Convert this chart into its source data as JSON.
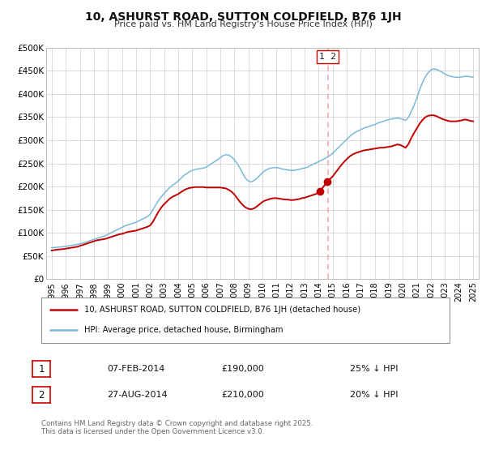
{
  "title": "10, ASHURST ROAD, SUTTON COLDFIELD, B76 1JH",
  "subtitle": "Price paid vs. HM Land Registry's House Price Index (HPI)",
  "ylim": [
    0,
    500000
  ],
  "yticks": [
    0,
    50000,
    100000,
    150000,
    200000,
    250000,
    300000,
    350000,
    400000,
    450000,
    500000
  ],
  "ytick_labels": [
    "£0",
    "£50K",
    "£100K",
    "£150K",
    "£200K",
    "£250K",
    "£300K",
    "£350K",
    "£400K",
    "£450K",
    "£500K"
  ],
  "xlim_left": 1994.6,
  "xlim_right": 2025.4,
  "xticks": [
    1995,
    1996,
    1997,
    1998,
    1999,
    2000,
    2001,
    2002,
    2003,
    2004,
    2005,
    2006,
    2007,
    2008,
    2009,
    2010,
    2011,
    2012,
    2013,
    2014,
    2015,
    2016,
    2017,
    2018,
    2019,
    2020,
    2021,
    2022,
    2023,
    2024,
    2025
  ],
  "hpi_color": "#7ab8d9",
  "price_color": "#c00000",
  "vline_x": 2014.65,
  "vline_color": "#f4aaaa",
  "ann_label": "1 2",
  "ann_x": 2014.65,
  "ann_y": 480000,
  "transaction1_date": "07-FEB-2014",
  "transaction1_price": "£190,000",
  "transaction1_note": "25% ↓ HPI",
  "transaction2_date": "27-AUG-2014",
  "transaction2_price": "£210,000",
  "transaction2_note": "20% ↓ HPI",
  "legend_label_price": "10, ASHURST ROAD, SUTTON COLDFIELD, B76 1JH (detached house)",
  "legend_label_hpi": "HPI: Average price, detached house, Birmingham",
  "footer": "Contains HM Land Registry data © Crown copyright and database right 2025.\nThis data is licensed under the Open Government Licence v3.0.",
  "bg": "#ffffff",
  "grid_color": "#cccccc",
  "hpi_data": [
    [
      1995.0,
      68000
    ],
    [
      1995.2,
      68500
    ],
    [
      1995.4,
      69000
    ],
    [
      1995.6,
      69500
    ],
    [
      1995.8,
      70000
    ],
    [
      1996.0,
      71000
    ],
    [
      1996.2,
      72000
    ],
    [
      1996.4,
      73000
    ],
    [
      1996.6,
      74000
    ],
    [
      1996.8,
      75000
    ],
    [
      1997.0,
      76500
    ],
    [
      1997.2,
      78000
    ],
    [
      1997.4,
      80000
    ],
    [
      1997.6,
      82000
    ],
    [
      1997.8,
      84000
    ],
    [
      1998.0,
      86000
    ],
    [
      1998.2,
      88000
    ],
    [
      1998.4,
      90000
    ],
    [
      1998.6,
      92000
    ],
    [
      1998.8,
      94000
    ],
    [
      1999.0,
      97000
    ],
    [
      1999.2,
      100000
    ],
    [
      1999.4,
      103000
    ],
    [
      1999.6,
      106000
    ],
    [
      1999.8,
      109000
    ],
    [
      2000.0,
      112000
    ],
    [
      2000.2,
      115000
    ],
    [
      2000.4,
      117000
    ],
    [
      2000.6,
      119000
    ],
    [
      2000.8,
      121000
    ],
    [
      2001.0,
      123000
    ],
    [
      2001.2,
      126000
    ],
    [
      2001.4,
      129000
    ],
    [
      2001.6,
      132000
    ],
    [
      2001.8,
      135000
    ],
    [
      2002.0,
      140000
    ],
    [
      2002.2,
      150000
    ],
    [
      2002.4,
      160000
    ],
    [
      2002.6,
      170000
    ],
    [
      2002.8,
      178000
    ],
    [
      2003.0,
      185000
    ],
    [
      2003.2,
      192000
    ],
    [
      2003.4,
      198000
    ],
    [
      2003.6,
      203000
    ],
    [
      2003.8,
      207000
    ],
    [
      2004.0,
      212000
    ],
    [
      2004.2,
      218000
    ],
    [
      2004.4,
      224000
    ],
    [
      2004.6,
      228000
    ],
    [
      2004.8,
      232000
    ],
    [
      2005.0,
      235000
    ],
    [
      2005.2,
      237000
    ],
    [
      2005.4,
      238000
    ],
    [
      2005.6,
      239000
    ],
    [
      2005.8,
      240000
    ],
    [
      2006.0,
      242000
    ],
    [
      2006.2,
      246000
    ],
    [
      2006.4,
      250000
    ],
    [
      2006.6,
      254000
    ],
    [
      2006.8,
      258000
    ],
    [
      2007.0,
      263000
    ],
    [
      2007.2,
      267000
    ],
    [
      2007.4,
      269000
    ],
    [
      2007.6,
      268000
    ],
    [
      2007.8,
      264000
    ],
    [
      2008.0,
      258000
    ],
    [
      2008.2,
      250000
    ],
    [
      2008.4,
      240000
    ],
    [
      2008.6,
      228000
    ],
    [
      2008.8,
      218000
    ],
    [
      2009.0,
      212000
    ],
    [
      2009.2,
      210000
    ],
    [
      2009.4,
      213000
    ],
    [
      2009.6,
      218000
    ],
    [
      2009.8,
      224000
    ],
    [
      2010.0,
      230000
    ],
    [
      2010.2,
      235000
    ],
    [
      2010.4,
      238000
    ],
    [
      2010.6,
      240000
    ],
    [
      2010.8,
      241000
    ],
    [
      2011.0,
      241000
    ],
    [
      2011.2,
      240000
    ],
    [
      2011.4,
      238000
    ],
    [
      2011.6,
      237000
    ],
    [
      2011.8,
      236000
    ],
    [
      2012.0,
      235000
    ],
    [
      2012.2,
      235000
    ],
    [
      2012.4,
      236000
    ],
    [
      2012.6,
      237000
    ],
    [
      2012.8,
      239000
    ],
    [
      2013.0,
      240000
    ],
    [
      2013.2,
      242000
    ],
    [
      2013.4,
      245000
    ],
    [
      2013.6,
      248000
    ],
    [
      2013.8,
      251000
    ],
    [
      2014.0,
      254000
    ],
    [
      2014.2,
      257000
    ],
    [
      2014.4,
      260000
    ],
    [
      2014.6,
      263000
    ],
    [
      2014.8,
      267000
    ],
    [
      2015.0,
      272000
    ],
    [
      2015.2,
      278000
    ],
    [
      2015.4,
      284000
    ],
    [
      2015.6,
      290000
    ],
    [
      2015.8,
      296000
    ],
    [
      2016.0,
      302000
    ],
    [
      2016.2,
      308000
    ],
    [
      2016.4,
      313000
    ],
    [
      2016.6,
      317000
    ],
    [
      2016.8,
      320000
    ],
    [
      2017.0,
      323000
    ],
    [
      2017.2,
      326000
    ],
    [
      2017.4,
      328000
    ],
    [
      2017.6,
      330000
    ],
    [
      2017.8,
      332000
    ],
    [
      2018.0,
      334000
    ],
    [
      2018.2,
      337000
    ],
    [
      2018.4,
      339000
    ],
    [
      2018.6,
      341000
    ],
    [
      2018.8,
      343000
    ],
    [
      2019.0,
      345000
    ],
    [
      2019.2,
      346000
    ],
    [
      2019.4,
      347000
    ],
    [
      2019.6,
      348000
    ],
    [
      2019.8,
      347000
    ],
    [
      2020.0,
      345000
    ],
    [
      2020.2,
      343000
    ],
    [
      2020.4,
      350000
    ],
    [
      2020.6,
      362000
    ],
    [
      2020.8,
      376000
    ],
    [
      2021.0,
      392000
    ],
    [
      2021.2,
      410000
    ],
    [
      2021.4,
      425000
    ],
    [
      2021.6,
      437000
    ],
    [
      2021.8,
      446000
    ],
    [
      2022.0,
      452000
    ],
    [
      2022.2,
      454000
    ],
    [
      2022.4,
      453000
    ],
    [
      2022.6,
      450000
    ],
    [
      2022.8,
      447000
    ],
    [
      2023.0,
      443000
    ],
    [
      2023.2,
      440000
    ],
    [
      2023.4,
      438000
    ],
    [
      2023.6,
      437000
    ],
    [
      2023.8,
      436000
    ],
    [
      2024.0,
      436000
    ],
    [
      2024.2,
      437000
    ],
    [
      2024.4,
      438000
    ],
    [
      2024.6,
      438000
    ],
    [
      2024.8,
      437000
    ],
    [
      2025.0,
      436000
    ]
  ],
  "price_data": [
    [
      1995.0,
      62000
    ],
    [
      1995.2,
      63000
    ],
    [
      1995.4,
      64000
    ],
    [
      1995.6,
      64500
    ],
    [
      1995.8,
      65000
    ],
    [
      1996.0,
      66000
    ],
    [
      1996.2,
      67000
    ],
    [
      1996.4,
      68000
    ],
    [
      1996.6,
      69000
    ],
    [
      1996.8,
      70000
    ],
    [
      1997.0,
      72000
    ],
    [
      1997.2,
      74000
    ],
    [
      1997.4,
      76000
    ],
    [
      1997.6,
      78000
    ],
    [
      1997.8,
      80000
    ],
    [
      1998.0,
      82000
    ],
    [
      1998.2,
      84000
    ],
    [
      1998.4,
      85000
    ],
    [
      1998.6,
      86000
    ],
    [
      1998.8,
      87000
    ],
    [
      1999.0,
      89000
    ],
    [
      1999.2,
      91000
    ],
    [
      1999.4,
      93000
    ],
    [
      1999.6,
      95000
    ],
    [
      1999.8,
      97000
    ],
    [
      2000.0,
      98000
    ],
    [
      2000.2,
      100000
    ],
    [
      2000.4,
      102000
    ],
    [
      2000.6,
      103000
    ],
    [
      2000.8,
      104000
    ],
    [
      2001.0,
      105000
    ],
    [
      2001.2,
      107000
    ],
    [
      2001.4,
      109000
    ],
    [
      2001.6,
      111000
    ],
    [
      2001.8,
      113000
    ],
    [
      2002.0,
      116000
    ],
    [
      2002.2,
      124000
    ],
    [
      2002.4,
      135000
    ],
    [
      2002.6,
      146000
    ],
    [
      2002.8,
      155000
    ],
    [
      2003.0,
      162000
    ],
    [
      2003.2,
      168000
    ],
    [
      2003.4,
      174000
    ],
    [
      2003.6,
      178000
    ],
    [
      2003.8,
      181000
    ],
    [
      2004.0,
      184000
    ],
    [
      2004.2,
      188000
    ],
    [
      2004.4,
      192000
    ],
    [
      2004.6,
      195000
    ],
    [
      2004.8,
      197000
    ],
    [
      2005.0,
      198000
    ],
    [
      2005.2,
      199000
    ],
    [
      2005.4,
      199000
    ],
    [
      2005.6,
      199000
    ],
    [
      2005.8,
      199000
    ],
    [
      2006.0,
      198000
    ],
    [
      2006.2,
      198000
    ],
    [
      2006.4,
      198000
    ],
    [
      2006.6,
      198000
    ],
    [
      2006.8,
      198000
    ],
    [
      2007.0,
      198000
    ],
    [
      2007.2,
      197000
    ],
    [
      2007.4,
      196000
    ],
    [
      2007.6,
      193000
    ],
    [
      2007.8,
      189000
    ],
    [
      2008.0,
      183000
    ],
    [
      2008.2,
      175000
    ],
    [
      2008.4,
      167000
    ],
    [
      2008.6,
      160000
    ],
    [
      2008.8,
      155000
    ],
    [
      2009.0,
      152000
    ],
    [
      2009.2,
      151000
    ],
    [
      2009.4,
      153000
    ],
    [
      2009.6,
      157000
    ],
    [
      2009.8,
      162000
    ],
    [
      2010.0,
      167000
    ],
    [
      2010.2,
      170000
    ],
    [
      2010.4,
      172000
    ],
    [
      2010.6,
      174000
    ],
    [
      2010.8,
      175000
    ],
    [
      2011.0,
      175000
    ],
    [
      2011.2,
      174000
    ],
    [
      2011.4,
      173000
    ],
    [
      2011.6,
      172000
    ],
    [
      2011.8,
      172000
    ],
    [
      2012.0,
      171000
    ],
    [
      2012.2,
      171000
    ],
    [
      2012.4,
      172000
    ],
    [
      2012.6,
      173000
    ],
    [
      2012.8,
      175000
    ],
    [
      2013.0,
      176000
    ],
    [
      2013.2,
      178000
    ],
    [
      2013.4,
      180000
    ],
    [
      2013.6,
      182000
    ],
    [
      2013.8,
      184000
    ],
    [
      2014.0,
      187000
    ],
    [
      2014.1,
      190000
    ],
    [
      2014.6,
      210000
    ],
    [
      2014.8,
      216000
    ],
    [
      2015.0,
      222000
    ],
    [
      2015.2,
      230000
    ],
    [
      2015.4,
      238000
    ],
    [
      2015.6,
      246000
    ],
    [
      2015.8,
      253000
    ],
    [
      2016.0,
      259000
    ],
    [
      2016.2,
      265000
    ],
    [
      2016.4,
      269000
    ],
    [
      2016.6,
      272000
    ],
    [
      2016.8,
      274000
    ],
    [
      2017.0,
      276000
    ],
    [
      2017.2,
      278000
    ],
    [
      2017.4,
      279000
    ],
    [
      2017.6,
      280000
    ],
    [
      2017.8,
      281000
    ],
    [
      2018.0,
      282000
    ],
    [
      2018.2,
      283000
    ],
    [
      2018.4,
      284000
    ],
    [
      2018.6,
      284000
    ],
    [
      2018.8,
      285000
    ],
    [
      2019.0,
      286000
    ],
    [
      2019.2,
      287000
    ],
    [
      2019.4,
      289000
    ],
    [
      2019.6,
      291000
    ],
    [
      2019.8,
      290000
    ],
    [
      2020.0,
      287000
    ],
    [
      2020.2,
      284000
    ],
    [
      2020.4,
      292000
    ],
    [
      2020.6,
      305000
    ],
    [
      2020.8,
      316000
    ],
    [
      2021.0,
      326000
    ],
    [
      2021.2,
      336000
    ],
    [
      2021.4,
      344000
    ],
    [
      2021.6,
      350000
    ],
    [
      2021.8,
      353000
    ],
    [
      2022.0,
      354000
    ],
    [
      2022.2,
      354000
    ],
    [
      2022.4,
      352000
    ],
    [
      2022.6,
      349000
    ],
    [
      2022.8,
      346000
    ],
    [
      2023.0,
      344000
    ],
    [
      2023.2,
      342000
    ],
    [
      2023.4,
      341000
    ],
    [
      2023.6,
      341000
    ],
    [
      2023.8,
      341000
    ],
    [
      2024.0,
      342000
    ],
    [
      2024.2,
      343000
    ],
    [
      2024.4,
      345000
    ],
    [
      2024.6,
      344000
    ],
    [
      2024.8,
      342000
    ],
    [
      2025.0,
      341000
    ]
  ],
  "sale1_x": 2014.1,
  "sale1_y": 190000,
  "sale2_x": 2014.6,
  "sale2_y": 210000
}
